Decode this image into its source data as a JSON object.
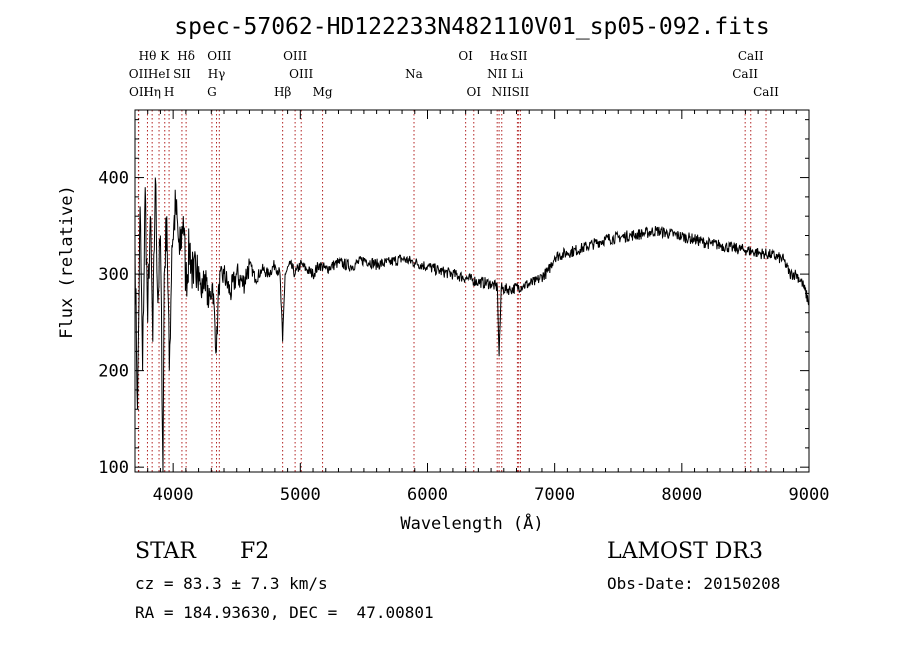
{
  "chart_data": {
    "type": "line",
    "title": "spec-57062-HD122233N482110V01_sp05-092.fits",
    "xlabel": "Wavelength (Å)",
    "ylabel": "Flux (relative)",
    "xlim": [
      3700,
      9000
    ],
    "ylim": [
      95,
      470
    ],
    "x_ticks": [
      4000,
      5000,
      6000,
      7000,
      8000,
      9000
    ],
    "x_tick_labels": [
      "4000",
      "5000",
      "6000",
      "7000",
      "8000",
      "9000"
    ],
    "y_ticks": [
      100,
      200,
      300,
      400
    ],
    "y_tick_labels": [
      "100",
      "200",
      "300",
      "400"
    ],
    "series": [
      {
        "name": "flux",
        "points": [
          [
            3700,
            330
          ],
          [
            3720,
            160
          ],
          [
            3740,
            370
          ],
          [
            3760,
            200
          ],
          [
            3780,
            390
          ],
          [
            3800,
            250
          ],
          [
            3820,
            360
          ],
          [
            3840,
            230
          ],
          [
            3860,
            400
          ],
          [
            3880,
            270
          ],
          [
            3900,
            340
          ],
          [
            3920,
            95
          ],
          [
            3930,
            300
          ],
          [
            3950,
            360
          ],
          [
            3970,
            200
          ],
          [
            3990,
            330
          ],
          [
            4020,
            370
          ],
          [
            4050,
            320
          ],
          [
            4080,
            360
          ],
          [
            4100,
            290
          ],
          [
            4130,
            330
          ],
          [
            4160,
            290
          ],
          [
            4190,
            320
          ],
          [
            4220,
            280
          ],
          [
            4250,
            300
          ],
          [
            4280,
            270
          ],
          [
            4310,
            290
          ],
          [
            4340,
            220
          ],
          [
            4360,
            290
          ],
          [
            4400,
            300
          ],
          [
            4450,
            280
          ],
          [
            4500,
            300
          ],
          [
            4550,
            290
          ],
          [
            4600,
            310
          ],
          [
            4650,
            295
          ],
          [
            4700,
            305
          ],
          [
            4750,
            300
          ],
          [
            4800,
            310
          ],
          [
            4840,
            300
          ],
          [
            4861,
            230
          ],
          [
            4880,
            300
          ],
          [
            4920,
            310
          ],
          [
            4960,
            300
          ],
          [
            5000,
            310
          ],
          [
            5050,
            305
          ],
          [
            5100,
            300
          ],
          [
            5150,
            310
          ],
          [
            5200,
            305
          ],
          [
            5300,
            312
          ],
          [
            5400,
            308
          ],
          [
            5500,
            315
          ],
          [
            5600,
            310
          ],
          [
            5700,
            312
          ],
          [
            5800,
            316
          ],
          [
            5900,
            312
          ],
          [
            6000,
            308
          ],
          [
            6100,
            303
          ],
          [
            6200,
            300
          ],
          [
            6300,
            296
          ],
          [
            6400,
            292
          ],
          [
            6500,
            290
          ],
          [
            6550,
            286
          ],
          [
            6563,
            215
          ],
          [
            6580,
            285
          ],
          [
            6650,
            284
          ],
          [
            6750,
            288
          ],
          [
            6850,
            292
          ],
          [
            6950,
            303
          ],
          [
            7000,
            318
          ],
          [
            7100,
            322
          ],
          [
            7200,
            326
          ],
          [
            7300,
            331
          ],
          [
            7400,
            336
          ],
          [
            7500,
            338
          ],
          [
            7600,
            340
          ],
          [
            7700,
            342
          ],
          [
            7800,
            345
          ],
          [
            7900,
            342
          ],
          [
            8000,
            339
          ],
          [
            8100,
            336
          ],
          [
            8200,
            332
          ],
          [
            8300,
            330
          ],
          [
            8400,
            327
          ],
          [
            8500,
            325
          ],
          [
            8600,
            322
          ],
          [
            8700,
            320
          ],
          [
            8800,
            315
          ],
          [
            8850,
            300
          ],
          [
            8900,
            300
          ],
          [
            8950,
            290
          ],
          [
            9000,
            270
          ]
        ]
      }
    ],
    "lines": [
      {
        "name": "Hθ",
        "wave": 3798,
        "row": 0
      },
      {
        "name": "OII",
        "wave": 3727,
        "row": 1
      },
      {
        "name": "OII",
        "wave": 3729,
        "row": 2
      },
      {
        "name": "Hη",
        "wave": 3835,
        "row": 2
      },
      {
        "name": "HeI",
        "wave": 3889,
        "row": 1
      },
      {
        "name": "K",
        "wave": 3934,
        "row": 0
      },
      {
        "name": "SII",
        "wave": 4069,
        "row": 1
      },
      {
        "name": "H",
        "wave": 3968,
        "row": 2
      },
      {
        "name": "Hδ",
        "wave": 4102,
        "row": 0
      },
      {
        "name": "OIII",
        "wave": 4363,
        "row": 0
      },
      {
        "name": "Hγ",
        "wave": 4341,
        "row": 1
      },
      {
        "name": "G",
        "wave": 4305,
        "row": 2
      },
      {
        "name": "OIII",
        "wave": 4959,
        "row": 0
      },
      {
        "name": "OIII",
        "wave": 5007,
        "row": 1
      },
      {
        "name": "Hβ",
        "wave": 4861,
        "row": 2
      },
      {
        "name": "Mg",
        "wave": 5175,
        "row": 2
      },
      {
        "name": "Na",
        "wave": 5894,
        "row": 1
      },
      {
        "name": "OI",
        "wave": 6300,
        "row": 0
      },
      {
        "name": "OI",
        "wave": 6364,
        "row": 2
      },
      {
        "name": "Hα",
        "wave": 6563,
        "row": 0
      },
      {
        "name": "NII",
        "wave": 6548,
        "row": 1
      },
      {
        "name": "NII",
        "wave": 6584,
        "row": 2
      },
      {
        "name": "SII",
        "wave": 6717,
        "row": 0
      },
      {
        "name": "Li",
        "wave": 6707,
        "row": 1
      },
      {
        "name": "SII",
        "wave": 6731,
        "row": 2
      },
      {
        "name": "CaII",
        "wave": 8542,
        "row": 0
      },
      {
        "name": "CaII",
        "wave": 8498,
        "row": 1
      },
      {
        "name": "CaII",
        "wave": 8662,
        "row": 2
      }
    ],
    "colors": {
      "spectrum": "#000000",
      "line_marker": "#b22222",
      "axis": "#000000"
    }
  },
  "footer": {
    "class": "STAR",
    "subclass": "F2",
    "survey": "LAMOST DR3",
    "cz": "cz = 83.3 ± 7.3 km/s",
    "obs_date": "Obs-Date: 20150208",
    "radec": "RA = 184.93630, DEC =  47.00801"
  }
}
